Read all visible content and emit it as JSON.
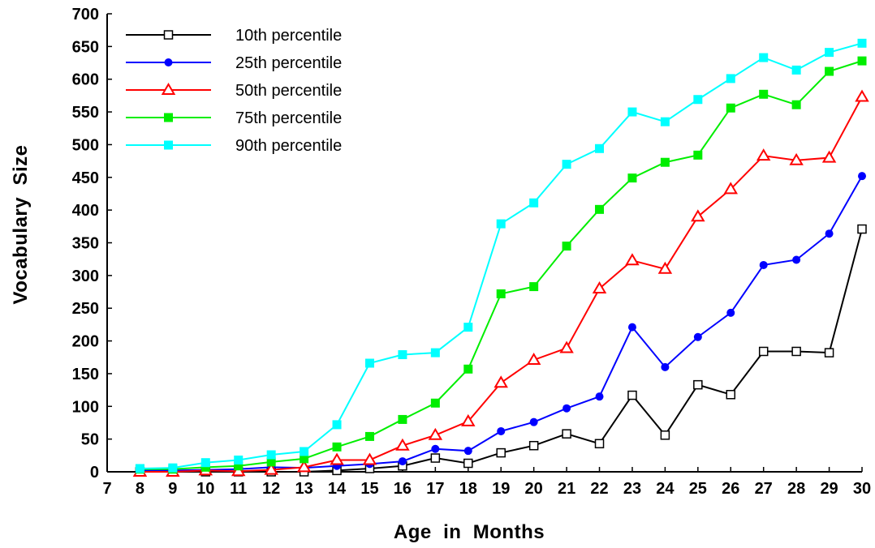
{
  "chart_data": {
    "type": "line",
    "title": "",
    "xlabel": "Age  in  Months",
    "ylabel": "Vocabulary  Size",
    "xlim": [
      7,
      30
    ],
    "ylim": [
      0,
      700
    ],
    "x_ticks": [
      "7",
      "8",
      "9",
      "10",
      "11",
      "12",
      "13",
      "14",
      "15",
      "16",
      "17",
      "18",
      "19",
      "20",
      "21",
      "22",
      "23",
      "24",
      "25",
      "26",
      "27",
      "28",
      "29",
      "30"
    ],
    "y_ticks": [
      "0",
      "50",
      "100",
      "150",
      "200",
      "250",
      "300",
      "350",
      "400",
      "450",
      "500",
      "550",
      "600",
      "650",
      "700"
    ],
    "grid": false,
    "legend_position": "top-left",
    "x": [
      8,
      9,
      10,
      11,
      12,
      13,
      14,
      15,
      16,
      17,
      18,
      19,
      20,
      21,
      22,
      23,
      24,
      25,
      26,
      27,
      28,
      29,
      30
    ],
    "series": [
      {
        "name": "10th percentile",
        "color": "#000000",
        "marker": "open-square",
        "values": [
          0,
          0,
          0,
          0,
          0,
          0,
          2,
          5,
          9,
          21,
          13,
          29,
          40,
          58,
          43,
          117,
          56,
          133,
          118,
          184,
          184,
          182,
          371
        ]
      },
      {
        "name": "25th percentile",
        "color": "#0000ff",
        "marker": "filled-circle",
        "values": [
          2,
          2,
          3,
          4,
          7,
          6,
          9,
          12,
          16,
          35,
          32,
          62,
          76,
          97,
          115,
          221,
          160,
          206,
          243,
          316,
          324,
          364,
          452
        ]
      },
      {
        "name": "50th percentile",
        "color": "#ff0000",
        "marker": "open-triangle",
        "values": [
          0,
          0,
          2,
          1,
          3,
          7,
          18,
          18,
          40,
          56,
          77,
          136,
          171,
          189,
          280,
          323,
          310,
          390,
          432,
          483,
          476,
          480,
          573
        ]
      },
      {
        "name": "75th percentile",
        "color": "#00ee00",
        "marker": "filled-square",
        "values": [
          4,
          4,
          7,
          9,
          15,
          20,
          38,
          54,
          80,
          105,
          157,
          272,
          283,
          345,
          401,
          449,
          473,
          484,
          556,
          577,
          561,
          612,
          628
        ]
      },
      {
        "name": "90th percentile",
        "color": "#00ffff",
        "marker": "filled-square",
        "values": [
          5,
          6,
          14,
          18,
          26,
          31,
          72,
          166,
          179,
          182,
          221,
          379,
          411,
          470,
          494,
          550,
          535,
          569,
          601,
          633,
          614,
          641,
          655
        ]
      }
    ]
  }
}
